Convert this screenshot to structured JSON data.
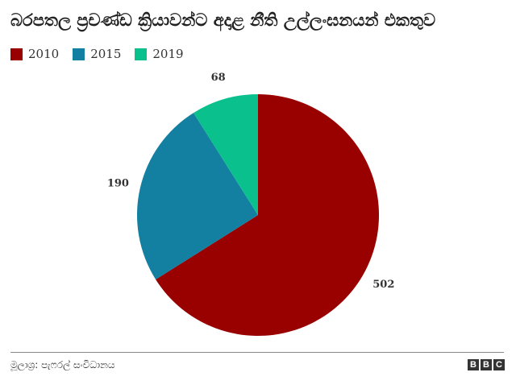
{
  "title": "බරපතල ප්‍රචණ්ඩ ක්‍රියාවන්ට අදාළ නීති උල්ලංඝනයන් එකතුව",
  "source": "මූලාශ්‍ර: පැෆරල් සංවිධානය",
  "logo": {
    "letters": [
      "B",
      "B",
      "C"
    ]
  },
  "chart_data": {
    "type": "pie",
    "title": "බරපතල ප්‍රචණ්ඩ ක්‍රියාවන්ට අදාළ නීති උල්ලංඝනයන් එකතුව",
    "legend": "top-left",
    "start": "12 o'clock, clockwise",
    "slices": [
      {
        "label": "2010",
        "value": 502,
        "color": "#990000"
      },
      {
        "label": "2015",
        "value": 190,
        "color": "#1380a1"
      },
      {
        "label": "2019",
        "value": 68,
        "color": "#0ac18e"
      }
    ]
  }
}
